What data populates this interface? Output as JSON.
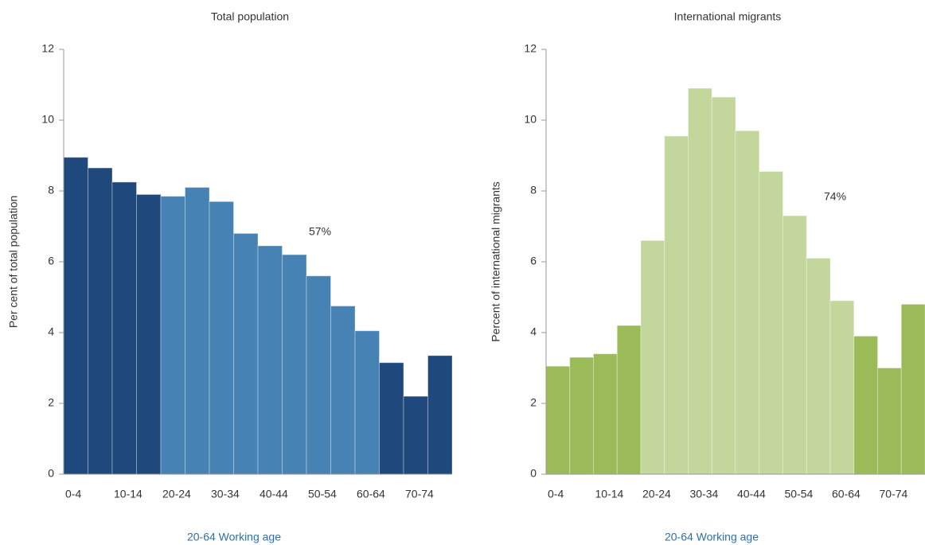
{
  "chart_data": [
    {
      "type": "bar",
      "title": "Total population",
      "y_label": "Per cent of total population",
      "x_label": "20-64 Working age",
      "categories": [
        "0-4",
        null,
        "10-14",
        null,
        "20-24",
        null,
        "30-34",
        null,
        "40-44",
        null,
        "50-54",
        null,
        "60-64",
        null,
        "70-74",
        null
      ],
      "values": [
        8.95,
        8.65,
        8.25,
        7.9,
        7.85,
        8.1,
        7.7,
        6.8,
        6.45,
        6.2,
        5.6,
        4.75,
        4.05,
        3.15,
        2.2,
        3.35
      ],
      "colors": [
        "#1f497d",
        "#1f497d",
        "#1f497d",
        "#1f497d",
        "#4682b4",
        "#4682b4",
        "#4682b4",
        "#4682b4",
        "#4682b4",
        "#4682b4",
        "#4682b4",
        "#4682b4",
        "#4682b4",
        "#1f497d",
        "#1f497d",
        "#1f497d"
      ],
      "annotation": "57%",
      "ylim": [
        0,
        12
      ],
      "yticks": [
        0,
        2,
        4,
        6,
        8,
        10,
        12
      ],
      "grid": false
    },
    {
      "type": "bar",
      "title": "International migrants",
      "y_label": "Percent of international migrants",
      "x_label": "20-64 Working age",
      "categories": [
        "0-4",
        null,
        "10-14",
        null,
        "20-24",
        null,
        "30-34",
        null,
        "40-44",
        null,
        "50-54",
        null,
        "60-64",
        null,
        "70-74",
        null
      ],
      "values": [
        3.05,
        3.3,
        3.4,
        4.2,
        6.6,
        9.55,
        10.9,
        10.65,
        9.7,
        8.55,
        7.3,
        6.1,
        4.9,
        3.9,
        3.0,
        4.8
      ],
      "colors": [
        "#9bbb59",
        "#9bbb59",
        "#9bbb59",
        "#9bbb59",
        "#c3d69b",
        "#c3d69b",
        "#c3d69b",
        "#c3d69b",
        "#c3d69b",
        "#c3d69b",
        "#c3d69b",
        "#c3d69b",
        "#c3d69b",
        "#9bbb59",
        "#9bbb59",
        "#9bbb59"
      ],
      "annotation": "74%",
      "ylim": [
        0,
        12
      ],
      "yticks": [
        0,
        2,
        4,
        6,
        8,
        10,
        12
      ],
      "grid": false
    }
  ]
}
